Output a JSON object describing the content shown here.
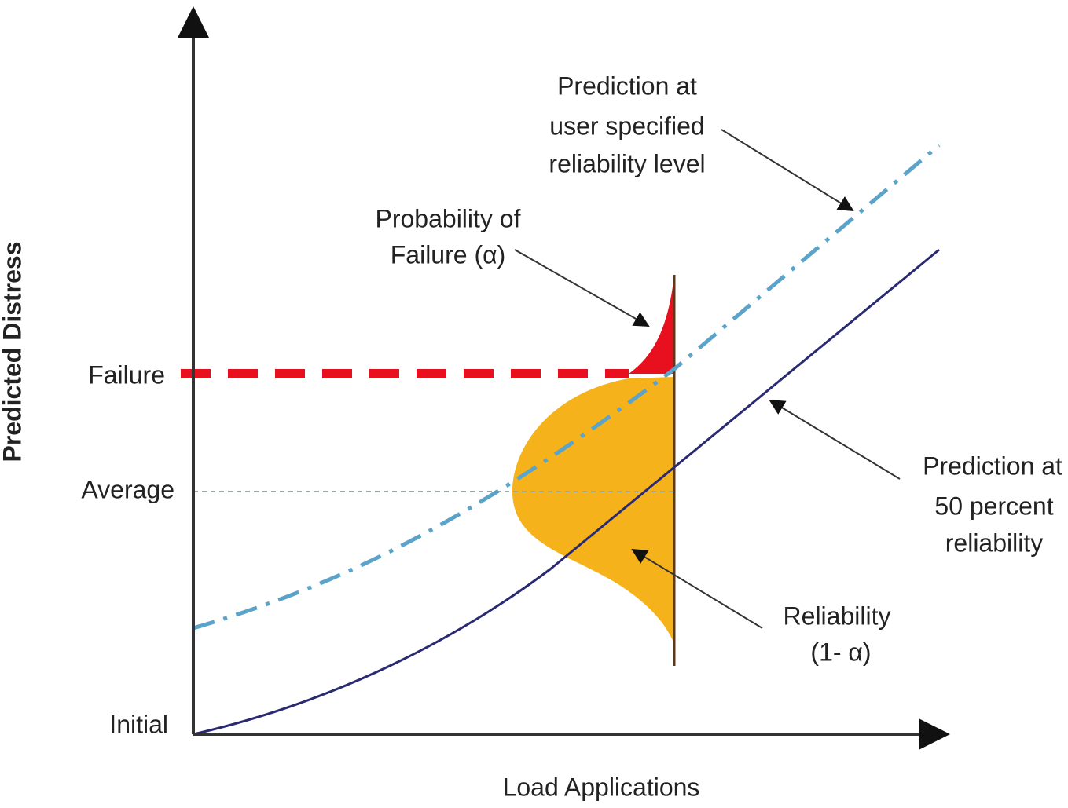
{
  "axes": {
    "y_label": "Predicted Distress",
    "x_label": "Load Applications"
  },
  "levels": [
    "Failure",
    "Average",
    "Initial"
  ],
  "annotations": [
    {
      "lines": [
        "Prediction at",
        "user specified",
        "reliability level"
      ]
    },
    {
      "lines": [
        "Probability of",
        "Failure (α)"
      ]
    },
    {
      "lines": [
        "Prediction at",
        "50 percent",
        "reliability"
      ]
    },
    {
      "lines": [
        "Reliability",
        "(1- α)"
      ]
    }
  ]
}
